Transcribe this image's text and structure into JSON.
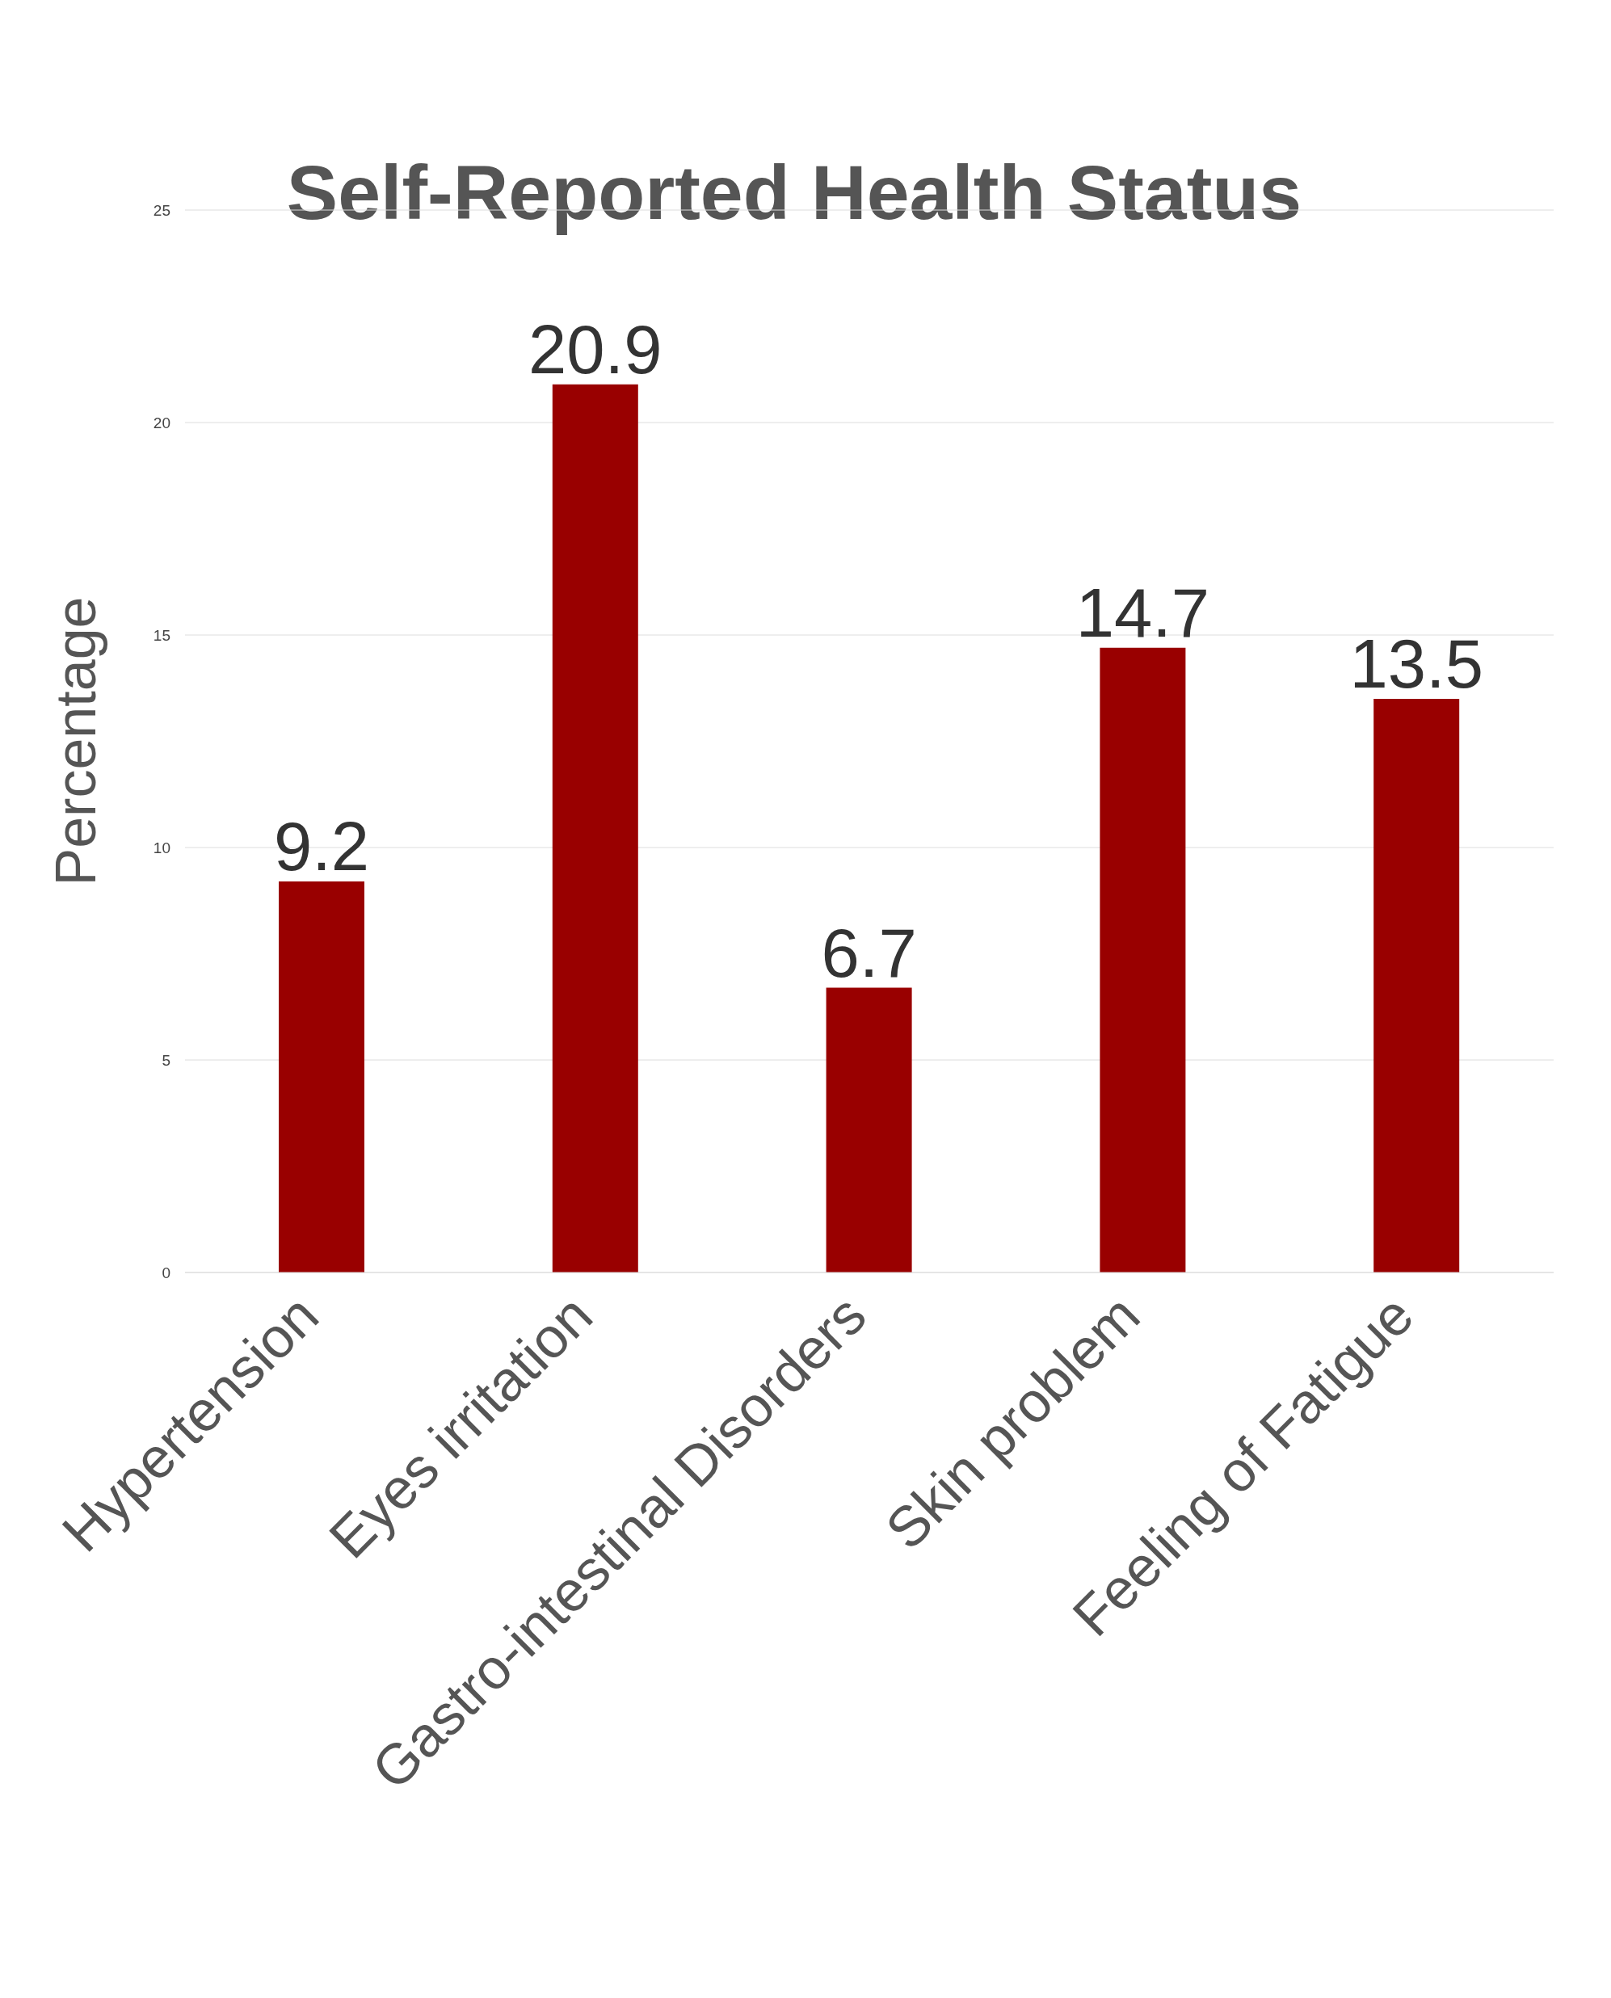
{
  "chart_data": {
    "type": "bar",
    "title": "Self-Reported Health Status",
    "ylabel": "Percentage",
    "categories": [
      "Hypertension",
      "Eyes irritation",
      "Gastro-intestinal Disorders",
      "Skin problem",
      "Feeling of Fatigue"
    ],
    "values": [
      9.2,
      20.9,
      6.7,
      14.7,
      13.5
    ],
    "color": "#990000",
    "ylim": [
      0,
      25
    ],
    "yticks": [
      0,
      5,
      10,
      15,
      20,
      25
    ],
    "grid": "y",
    "data_labels": true
  }
}
